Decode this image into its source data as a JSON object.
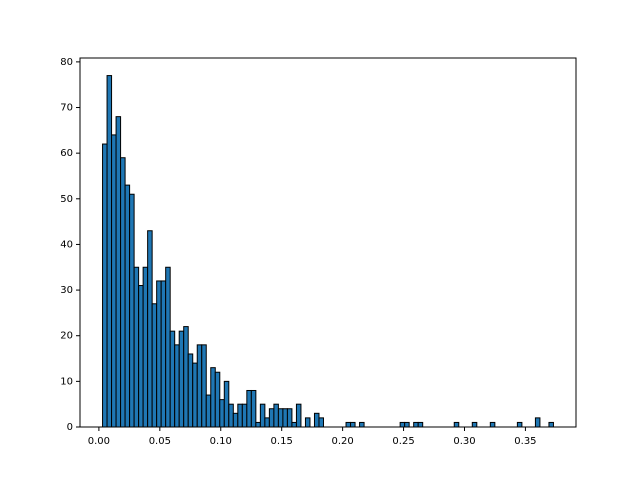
{
  "chart_data": {
    "type": "histogram",
    "bins": [
      0.003,
      0.0067,
      0.0104,
      0.0141,
      0.0178,
      0.0215,
      0.0252,
      0.0289,
      0.0326,
      0.0363,
      0.04,
      0.0437,
      0.0474,
      0.0511,
      0.0548,
      0.0585,
      0.0622,
      0.0659,
      0.0696,
      0.0733,
      0.077,
      0.0807,
      0.0844,
      0.0881,
      0.0918,
      0.0955,
      0.0992,
      0.1029,
      0.1066,
      0.1103,
      0.114,
      0.1177,
      0.1214,
      0.1251,
      0.1288,
      0.1325,
      0.1362,
      0.1399,
      0.1436,
      0.1473,
      0.151,
      0.1547,
      0.1584,
      0.1621,
      0.1658,
      0.1695,
      0.1732,
      0.1769,
      0.1806,
      0.1843,
      0.188,
      0.1917,
      0.1954,
      0.1991,
      0.2028,
      0.2065,
      0.2102,
      0.2139,
      0.2176,
      0.2213,
      0.225,
      0.2287,
      0.2324,
      0.2361,
      0.2398,
      0.2435,
      0.2472,
      0.2509,
      0.2546,
      0.2583,
      0.262,
      0.2657,
      0.2694,
      0.2731,
      0.2768,
      0.2805,
      0.2842,
      0.2879,
      0.2916,
      0.2953,
      0.299,
      0.3027,
      0.3064,
      0.3101,
      0.3138,
      0.3175,
      0.3212,
      0.3249,
      0.3286,
      0.3323,
      0.336,
      0.3397,
      0.3434,
      0.3471,
      0.3508,
      0.3545,
      0.3582,
      0.3619,
      0.3656,
      0.3693,
      0.373
    ],
    "values": [
      62,
      77,
      64,
      68,
      59,
      53,
      51,
      35,
      31,
      35,
      43,
      27,
      32,
      32,
      35,
      21,
      18,
      21,
      22,
      16,
      14,
      18,
      18,
      7,
      13,
      12,
      6,
      10,
      5,
      3,
      5,
      5,
      8,
      8,
      1,
      5,
      2,
      4,
      5,
      4,
      4,
      4,
      1,
      5,
      0,
      2,
      0,
      3,
      2,
      0,
      0,
      0,
      0,
      0,
      1,
      1,
      0,
      1,
      0,
      0,
      0,
      0,
      0,
      0,
      0,
      0,
      1,
      1,
      0,
      1,
      1,
      0,
      0,
      0,
      0,
      0,
      0,
      0,
      1,
      0,
      0,
      0,
      1,
      0,
      0,
      0,
      1,
      0,
      0,
      0,
      0,
      0,
      1,
      0,
      0,
      0,
      2,
      0,
      0,
      1
    ],
    "color": "#1f77b4",
    "edgecolor": "#000000",
    "xlim": [
      -0.0155,
      0.3915
    ],
    "xticks": [
      {
        "value": 0,
        "label": "0.00"
      },
      {
        "value": 0.05,
        "label": "0.05"
      },
      {
        "value": 0.1,
        "label": "0.10"
      },
      {
        "value": 0.15,
        "label": "0.15"
      },
      {
        "value": 0.2,
        "label": "0.20"
      },
      {
        "value": 0.25,
        "label": "0.25"
      },
      {
        "value": 0.3,
        "label": "0.30"
      },
      {
        "value": 0.35,
        "label": "0.35"
      }
    ],
    "ylim": [
      0,
      80.85
    ],
    "yticks": [
      0,
      10,
      20,
      30,
      40,
      50,
      60,
      70,
      80
    ]
  }
}
